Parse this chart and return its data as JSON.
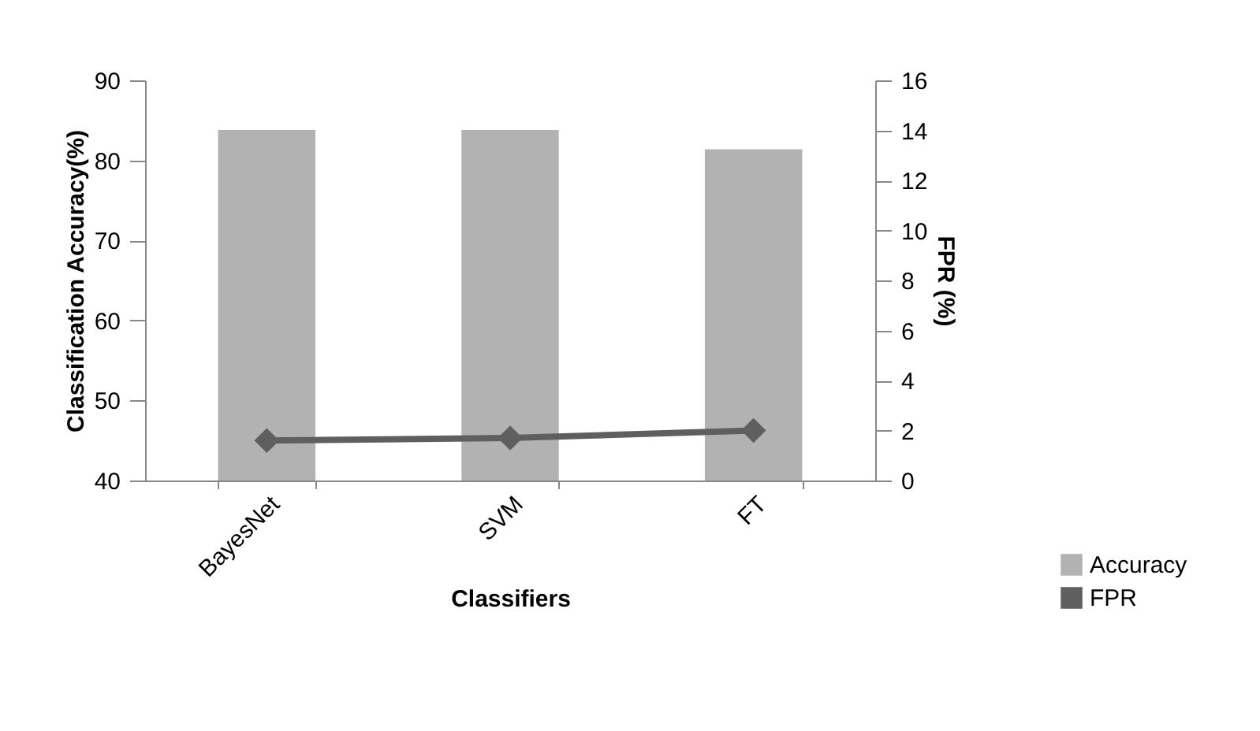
{
  "chart_data": {
    "type": "bar",
    "categories": [
      "BayesNet",
      "SVM",
      "FT"
    ],
    "xlabel": "Classifiers",
    "ylabel": "Classification Accuracy(%)",
    "y2label": "FPR (%)",
    "series": [
      {
        "name": "Accuracy",
        "color": "#b2b2b2",
        "values": [
          83.8,
          83.8,
          81.4
        ]
      },
      {
        "name": "FPR",
        "type": "line",
        "axis": "y2",
        "color": "#5f5f5f",
        "values": [
          1.6,
          1.7,
          2.0
        ]
      }
    ],
    "ylim": [
      40,
      90
    ],
    "yticks": [
      40,
      50,
      60,
      70,
      80,
      90
    ],
    "y2lim": [
      0,
      16
    ],
    "y2ticks": [
      0,
      2,
      4,
      6,
      8,
      10,
      12,
      14,
      16
    ],
    "grid": false,
    "legend": "bottom right",
    "marker": "diamond",
    "line_style": "solid"
  }
}
